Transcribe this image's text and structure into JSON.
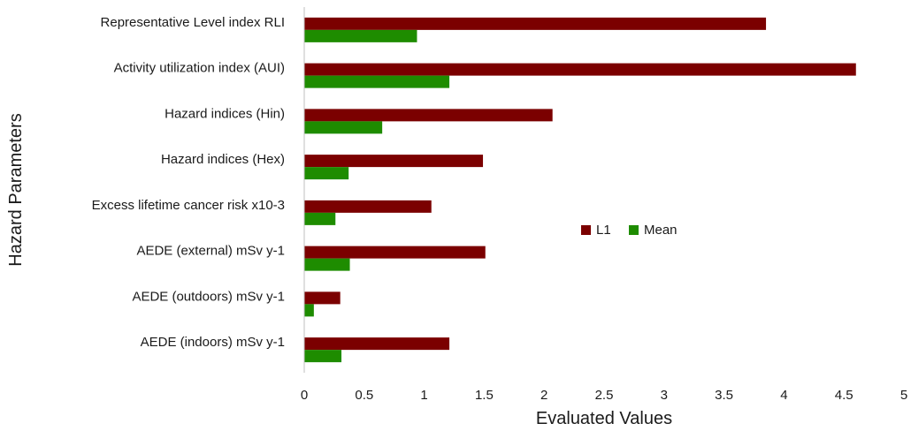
{
  "chart_data": {
    "type": "bar",
    "orientation": "horizontal",
    "categories": [
      "AEDE (indoors) mSv y-1",
      "AEDE (outdoors) mSv y-1",
      "AEDE (external) mSv y-1",
      "Excess lifetime cancer risk x10-3",
      "Hazard indices (Hex)",
      "Hazard indices (Hin)",
      "Activity utilization index (AUI)",
      "Representative Level index RLI"
    ],
    "series": [
      {
        "name": "L1",
        "color": "#7b0000",
        "values": [
          1.21,
          0.3,
          1.51,
          1.06,
          1.49,
          2.07,
          4.6,
          3.85
        ]
      },
      {
        "name": "Mean",
        "color": "#1e8c00",
        "values": [
          0.31,
          0.08,
          0.38,
          0.26,
          0.37,
          0.65,
          1.21,
          0.94
        ]
      }
    ],
    "xlabel": "Evaluated Values",
    "ylabel": "Hazard Parameters",
    "xlim": [
      0,
      5
    ],
    "xticks": [
      "0",
      "0.5",
      "1",
      "1.5",
      "2",
      "2.5",
      "3",
      "3.5",
      "4",
      "4.5",
      "5"
    ],
    "grid": false,
    "legend": "right-center"
  }
}
